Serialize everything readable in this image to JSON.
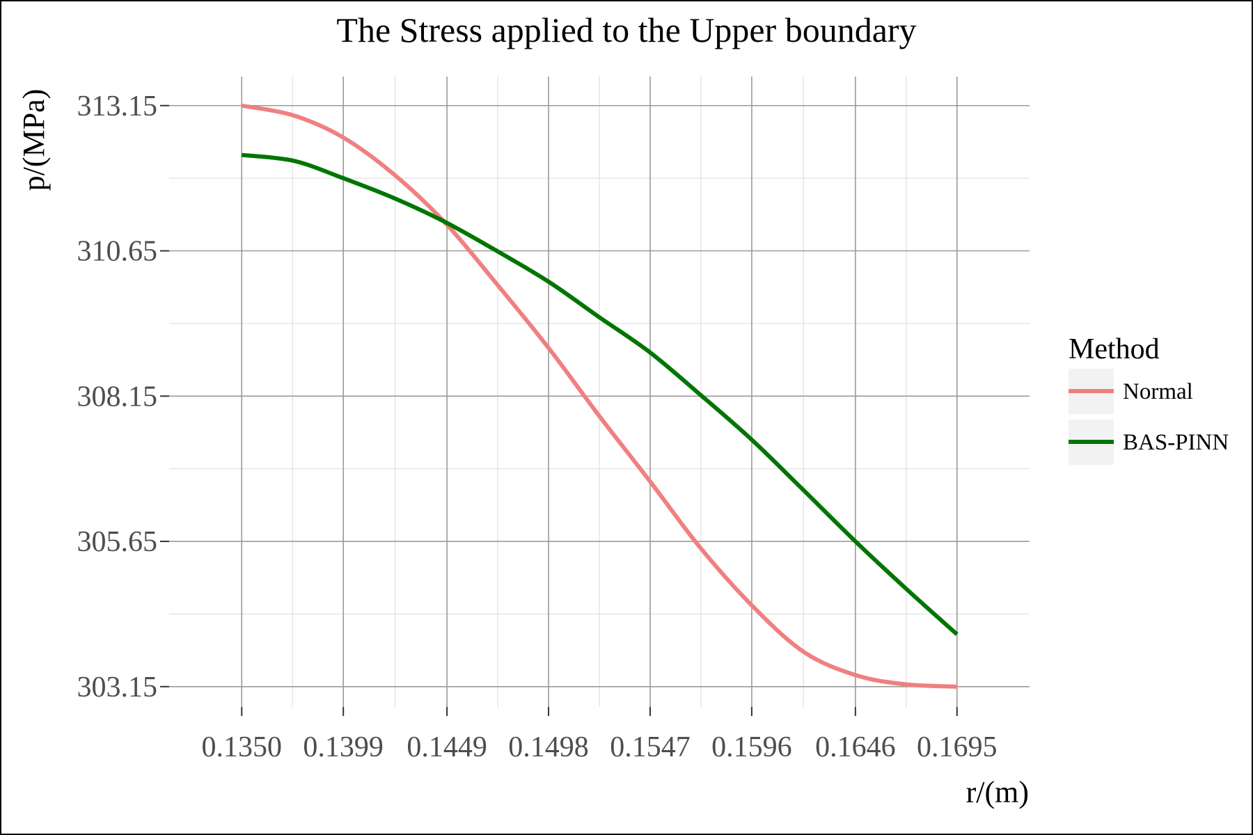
{
  "chart_data": {
    "type": "line",
    "title": "The Stress applied to the Upper boundary",
    "xlabel": "r/(m)",
    "ylabel": "p/(MPa)",
    "xlim": [
      0.1315,
      0.173
    ],
    "ylim": [
      302.8,
      313.65
    ],
    "x_ticks": [
      0.135,
      0.1399,
      0.1449,
      0.1498,
      0.1547,
      0.1596,
      0.1646,
      0.1695
    ],
    "x_tick_labels": [
      "0.1350",
      "0.1399",
      "0.1449",
      "0.1498",
      "0.1547",
      "0.1596",
      "0.1646",
      "0.1695"
    ],
    "y_ticks": [
      303.15,
      305.65,
      308.15,
      310.65,
      313.15
    ],
    "y_tick_labels": [
      "303.15",
      "305.65",
      "308.15",
      "310.65",
      "313.15"
    ],
    "grid": true,
    "legend": {
      "title": "Method",
      "position": "right"
    },
    "series": [
      {
        "name": "Normal",
        "color": "#f08080",
        "x": [
          0.135,
          0.1375,
          0.1399,
          0.1424,
          0.1449,
          0.1473,
          0.1498,
          0.1522,
          0.1547,
          0.1571,
          0.1596,
          0.1621,
          0.1646,
          0.167,
          0.1695
        ],
        "y": [
          313.15,
          312.98,
          312.6,
          311.95,
          311.1,
          310.08,
          308.98,
          307.83,
          306.68,
          305.55,
          304.55,
          303.75,
          303.35,
          303.19,
          303.15
        ]
      },
      {
        "name": "BAS-PINN",
        "color": "#007500",
        "x": [
          0.135,
          0.1375,
          0.1399,
          0.1424,
          0.1449,
          0.1473,
          0.1498,
          0.1522,
          0.1547,
          0.1571,
          0.1596,
          0.1621,
          0.1646,
          0.167,
          0.1695
        ],
        "y": [
          312.3,
          312.2,
          311.9,
          311.55,
          311.13,
          310.65,
          310.12,
          309.52,
          308.9,
          308.18,
          307.4,
          306.53,
          305.65,
          304.85,
          304.05
        ]
      }
    ]
  }
}
